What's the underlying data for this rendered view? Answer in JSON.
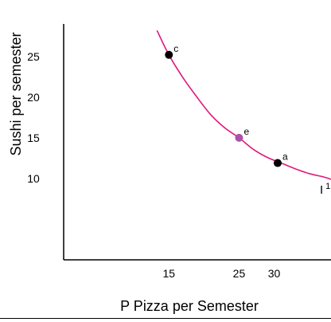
{
  "chart_data": {
    "type": "line",
    "xlabel": "P Pizza per Semester",
    "ylabel": "Sushi per semester",
    "x_ticks": [
      15,
      25,
      30
    ],
    "y_ticks": [
      10,
      15,
      20,
      25
    ],
    "xlim": [
      0,
      38.1
    ],
    "ylim": [
      0,
      29
    ],
    "grid": false,
    "series": [
      {
        "name": "I",
        "name_superscript": "1",
        "color": "#e0197c",
        "x": [
          13.3,
          15,
          17,
          19,
          21,
          23,
          25,
          27,
          29,
          31,
          33,
          35,
          37,
          38.1
        ],
        "y": [
          28.2,
          25.2,
          22.4,
          20.0,
          17.8,
          16.2,
          15.0,
          13.6,
          12.6,
          11.9,
          11.2,
          10.6,
          10.2,
          9.9
        ]
      }
    ],
    "points": [
      {
        "label": "c",
        "x": 15,
        "y": 25.2,
        "color": "#000000"
      },
      {
        "label": "e",
        "x": 25,
        "y": 15.0,
        "color": "#a855a8"
      },
      {
        "label": "a",
        "x": 30.5,
        "y": 11.9,
        "color": "#000000"
      }
    ]
  }
}
